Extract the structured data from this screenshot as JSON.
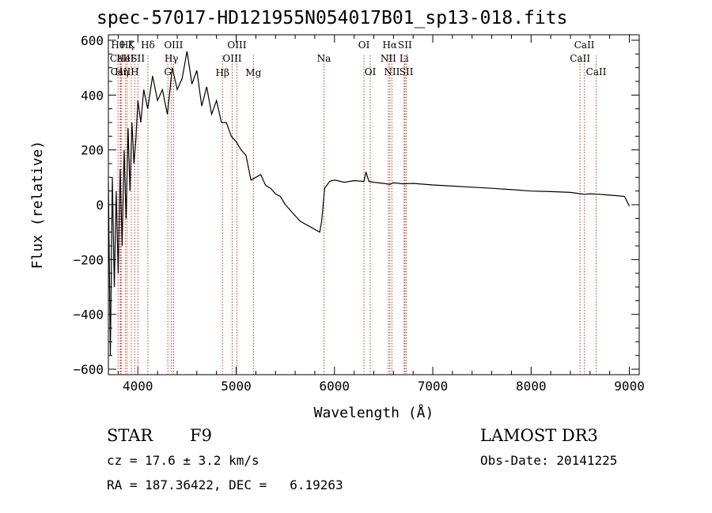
{
  "chart_data": {
    "type": "line",
    "title": "spec-57017-HD121955N054017B01_sp13-018.fits",
    "xlabel": "Wavelength (Å)",
    "ylabel": "Flux (relative)",
    "xlim": [
      3700,
      9100
    ],
    "ylim": [
      -620,
      620
    ],
    "xticks": [
      4000,
      5000,
      6000,
      7000,
      8000,
      9000
    ],
    "xtick_labels": [
      "4000",
      "5000",
      "6000",
      "7000",
      "8000",
      "9000"
    ],
    "yticks": [
      -600,
      -400,
      -200,
      0,
      200,
      400,
      600
    ],
    "ytick_labels": [
      "−600",
      "−400",
      "−200",
      "0",
      "200",
      "400",
      "600"
    ],
    "grid": false,
    "line_color": "#000000",
    "marker_color": "#c0392b",
    "series": [
      {
        "x": [
          3700,
          3720,
          3740,
          3760,
          3780,
          3800,
          3820,
          3840,
          3860,
          3880,
          3900,
          3920,
          3940,
          3960,
          3980,
          4000,
          4030,
          4060,
          4100,
          4150,
          4200,
          4250,
          4300,
          4350,
          4400,
          4450,
          4500,
          4550,
          4600,
          4650,
          4700,
          4750,
          4800,
          4850,
          4900,
          4950,
          5000,
          5050,
          5100,
          5150,
          5200,
          5250,
          5300,
          5350,
          5400,
          5450,
          5500,
          5550,
          5600,
          5650,
          5700,
          5750,
          5800,
          5850,
          5870,
          5900,
          5950,
          6000,
          6100,
          6200,
          6300,
          6320,
          6350,
          6400,
          6500,
          6562,
          6600,
          6700,
          6800,
          7000,
          7200,
          7400,
          7600,
          7800,
          8000,
          8200,
          8400,
          8500,
          8542,
          8600,
          8700,
          8800,
          8900,
          8950,
          9000
        ],
        "y": [
          80,
          -550,
          100,
          -300,
          50,
          -250,
          130,
          -150,
          200,
          -50,
          280,
          50,
          300,
          150,
          240,
          380,
          300,
          420,
          350,
          470,
          380,
          420,
          330,
          500,
          420,
          460,
          560,
          440,
          490,
          360,
          430,
          330,
          380,
          300,
          300,
          250,
          230,
          200,
          180,
          90,
          100,
          110,
          70,
          60,
          40,
          30,
          0,
          -20,
          -40,
          -60,
          -70,
          -80,
          -90,
          -100,
          -60,
          60,
          85,
          90,
          82,
          88,
          85,
          120,
          85,
          82,
          78,
          74,
          80,
          76,
          78,
          72,
          68,
          64,
          60,
          55,
          50,
          48,
          45,
          40,
          38,
          40,
          38,
          35,
          32,
          30,
          -5
        ]
      }
    ],
    "markers": [
      {
        "label": "Hθ",
        "x": 3798,
        "row": 1
      },
      {
        "label": "CaII",
        "x": 3820,
        "row": 2
      },
      {
        "label": "CaII",
        "x": 3825,
        "row": 3
      },
      {
        "label": "Hη",
        "x": 3835,
        "row": 3
      },
      {
        "label": "Hζ",
        "x": 3889,
        "row": 1
      },
      {
        "label": "HeI",
        "x": 3872,
        "row": 2
      },
      {
        "label": "K",
        "x": 3934,
        "row": 1
      },
      {
        "label": "H",
        "x": 3968,
        "row": 3
      },
      {
        "label": "SII",
        "x": 4000,
        "row": 2
      },
      {
        "label": "Hδ",
        "x": 4102,
        "row": 1
      },
      {
        "label": "OIII",
        "x": 4363,
        "row": 1
      },
      {
        "label": "Hγ",
        "x": 4341,
        "row": 2
      },
      {
        "label": "G",
        "x": 4305,
        "row": 3
      },
      {
        "label": "Hβ",
        "x": 4861,
        "row": 4
      },
      {
        "label": "OIII",
        "x": 5007,
        "row": 1
      },
      {
        "label": "OIII",
        "x": 4959,
        "row": 2
      },
      {
        "label": "Mg",
        "x": 5175,
        "row": 4
      },
      {
        "label": "Na",
        "x": 5893,
        "row": 2
      },
      {
        "label": "OI",
        "x": 6300,
        "row": 1
      },
      {
        "label": "OI",
        "x": 6364,
        "row": 3
      },
      {
        "label": "Hα",
        "x": 6563,
        "row": 1
      },
      {
        "label": "NII",
        "x": 6548,
        "row": 2
      },
      {
        "label": "NII",
        "x": 6584,
        "row": 3
      },
      {
        "label": "SII",
        "x": 6717,
        "row": 1
      },
      {
        "label": "Li",
        "x": 6708,
        "row": 2
      },
      {
        "label": "SII",
        "x": 6731,
        "row": 3
      },
      {
        "label": "CaII",
        "x": 8542,
        "row": 1
      },
      {
        "label": "CaII",
        "x": 8498,
        "row": 2
      },
      {
        "label": "CaII",
        "x": 8662,
        "row": 3
      }
    ]
  },
  "info": {
    "object_type": "STAR",
    "subclass": "F9",
    "survey": "LAMOST DR3",
    "cz": "cz = 17.6 ± 3.2 km/s",
    "obs_date": "Obs-Date: 20141225",
    "coords": "RA = 187.36422, DEC =   6.19263"
  }
}
